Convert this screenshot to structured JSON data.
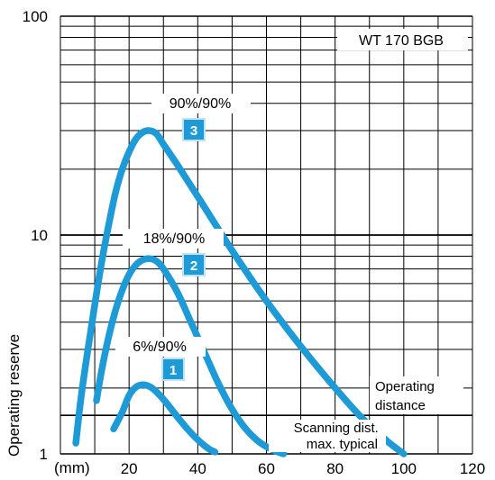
{
  "chart_data": {
    "type": "line",
    "title": "WT 170 BGB",
    "xlabel": "(mm)",
    "ylabel": "Operating reserve",
    "xlim": [
      0,
      120
    ],
    "ylim": [
      1,
      100
    ],
    "yscale": "log",
    "x_ticks": [
      "20",
      "40",
      "60",
      "80",
      "100",
      "120"
    ],
    "y_ticks": [
      "1",
      "10",
      "100"
    ],
    "grid": true,
    "line_color": "#1e9ad6",
    "reference_line": {
      "y": 1.5,
      "label_above": "Operating distance",
      "label_below": "Scanning dist. max. typical"
    },
    "series": [
      {
        "badge": "1",
        "label": "6%/90%",
        "points": [
          [
            15.5,
            1.3
          ],
          [
            18,
            1.55
          ],
          [
            20,
            1.85
          ],
          [
            22,
            2.02
          ],
          [
            24,
            2.07
          ],
          [
            26,
            2.03
          ],
          [
            28,
            1.92
          ],
          [
            31,
            1.7
          ],
          [
            34,
            1.48
          ],
          [
            37,
            1.3
          ],
          [
            40,
            1.16
          ],
          [
            43,
            1.06
          ],
          [
            45,
            1.02
          ]
        ]
      },
      {
        "badge": "2",
        "label": "18%/90%",
        "points": [
          [
            10.5,
            1.75
          ],
          [
            12,
            2.4
          ],
          [
            14,
            3.4
          ],
          [
            16,
            4.5
          ],
          [
            18,
            5.6
          ],
          [
            20,
            6.6
          ],
          [
            22,
            7.3
          ],
          [
            24,
            7.7
          ],
          [
            26,
            7.8
          ],
          [
            28,
            7.6
          ],
          [
            30,
            7.0
          ],
          [
            34,
            5.5
          ],
          [
            38,
            4.0
          ],
          [
            42,
            2.9
          ],
          [
            46,
            2.1
          ],
          [
            50,
            1.6
          ],
          [
            54,
            1.3
          ],
          [
            58,
            1.13
          ],
          [
            62,
            1.04
          ],
          [
            65,
            1.0
          ]
        ]
      },
      {
        "badge": "3",
        "label": "90%/90%",
        "points": [
          [
            4.5,
            1.12
          ],
          [
            6,
            1.8
          ],
          [
            8,
            3.0
          ],
          [
            10,
            4.8
          ],
          [
            12,
            7.5
          ],
          [
            14,
            11
          ],
          [
            16,
            15.5
          ],
          [
            18,
            20
          ],
          [
            20,
            24
          ],
          [
            22,
            27.5
          ],
          [
            24,
            29.5
          ],
          [
            26,
            30
          ],
          [
            28,
            29
          ],
          [
            30,
            26
          ],
          [
            34,
            21
          ],
          [
            40,
            15
          ],
          [
            50,
            8.5
          ],
          [
            60,
            5
          ],
          [
            70,
            3.1
          ],
          [
            80,
            2.0
          ],
          [
            88,
            1.45
          ],
          [
            95,
            1.15
          ],
          [
            100,
            1.0
          ]
        ]
      }
    ]
  }
}
